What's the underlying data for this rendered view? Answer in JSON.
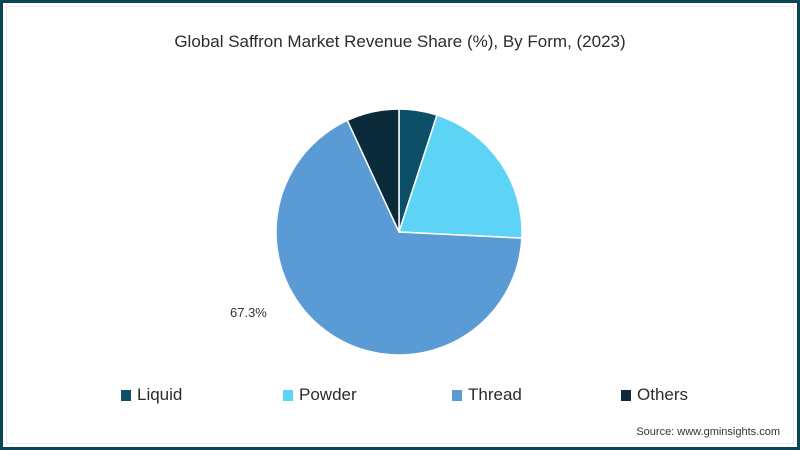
{
  "title": "Global Saffron Market Revenue Share (%), By Form, (2023)",
  "source": "Source: www.gminsights.com",
  "colors": {
    "border": "#0c4457",
    "liquid": "#0d4f66",
    "powder": "#5dd3f5",
    "thread": "#5b9bd5",
    "others": "#0b2b3a"
  },
  "legend": [
    {
      "label": "Liquid",
      "color": "#0d4f66"
    },
    {
      "label": "Powder",
      "color": "#5dd3f5"
    },
    {
      "label": "Thread",
      "color": "#5b9bd5"
    },
    {
      "label": "Others",
      "color": "#0b2b3a"
    }
  ],
  "labels": {
    "thread": "67.3%"
  },
  "chart_data": {
    "type": "pie",
    "title": "Global Saffron Market Revenue Share (%), By Form, (2023)",
    "categories": [
      "Liquid",
      "Powder",
      "Thread",
      "Others"
    ],
    "values": [
      5.0,
      20.8,
      67.3,
      6.9
    ],
    "colors": [
      "#0d4f66",
      "#5dd3f5",
      "#5b9bd5",
      "#0b2b3a"
    ],
    "data_labels": {
      "Thread": "67.3%"
    },
    "start_angle_deg": 0,
    "direction": "clockwise",
    "legend_position": "bottom",
    "unit": "%",
    "source": "www.gminsights.com"
  }
}
